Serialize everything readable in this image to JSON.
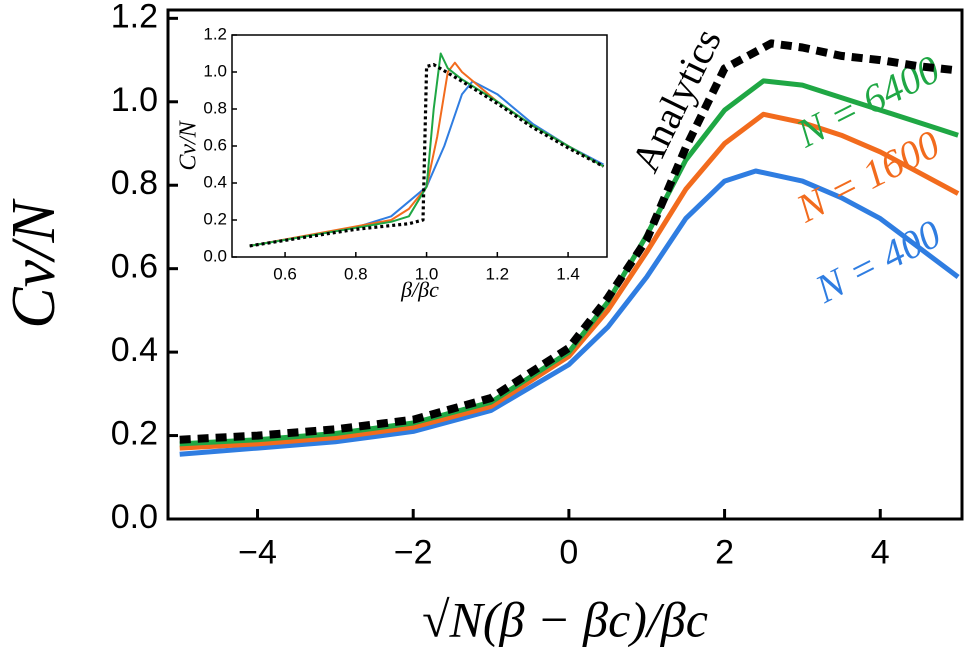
{
  "chart_data": [
    {
      "type": "line",
      "xlabel": "√N(β − βc)/βc",
      "ylabel": "Cv/N",
      "xlim": [
        -5.15,
        5.05
      ],
      "ylim": [
        0,
        1.22
      ],
      "xticks": [
        {
          "value": -4,
          "label": "−4"
        },
        {
          "value": -2,
          "label": "−2"
        },
        0,
        2,
        4
      ],
      "yticks": [
        {
          "value": 0,
          "label": "0.0"
        },
        0.2,
        0.4,
        0.6,
        0.8,
        {
          "value": 1,
          "label": "1.0"
        },
        1.2
      ],
      "series": [
        {
          "name": "N = 400",
          "color": "#2f7de1",
          "dash": false,
          "x": [
            -5,
            -4,
            -3,
            -2,
            -1,
            0,
            0.5,
            1,
            1.5,
            2,
            2.4,
            3,
            3.5,
            4,
            4.5,
            5
          ],
          "values": [
            0.155,
            0.17,
            0.185,
            0.21,
            0.26,
            0.37,
            0.46,
            0.58,
            0.72,
            0.81,
            0.834,
            0.81,
            0.77,
            0.72,
            0.65,
            0.58
          ]
        },
        {
          "name": "N = 1600",
          "color": "#f26b1d",
          "dash": false,
          "x": [
            -5,
            -4,
            -3,
            -2,
            -1,
            0,
            0.5,
            1,
            1.5,
            2,
            2.5,
            3,
            3.5,
            4,
            4.5,
            5
          ],
          "values": [
            0.17,
            0.18,
            0.195,
            0.22,
            0.27,
            0.39,
            0.5,
            0.64,
            0.79,
            0.9,
            0.97,
            0.95,
            0.92,
            0.88,
            0.83,
            0.78
          ]
        },
        {
          "name": "N = 6400",
          "color": "#1fa744",
          "dash": false,
          "x": [
            -5,
            -4,
            -3,
            -2,
            -1,
            0,
            0.5,
            1,
            1.5,
            2,
            2.5,
            3,
            3.5,
            4,
            4.5,
            5
          ],
          "values": [
            0.18,
            0.19,
            0.205,
            0.23,
            0.28,
            0.4,
            0.52,
            0.68,
            0.86,
            0.98,
            1.05,
            1.04,
            1.01,
            0.98,
            0.95,
            0.92
          ]
        },
        {
          "name": "Analytics",
          "color": "#000000",
          "dash": true,
          "x": [
            -5,
            -4,
            -3,
            -2,
            -1,
            0,
            0.5,
            1,
            1.5,
            2,
            2.6,
            3,
            3.5,
            4,
            4.5,
            5
          ],
          "values": [
            0.19,
            0.2,
            0.215,
            0.238,
            0.29,
            0.41,
            0.53,
            0.67,
            0.89,
            1.08,
            1.14,
            1.13,
            1.11,
            1.1,
            1.085,
            1.075
          ]
        }
      ]
    },
    {
      "type": "line",
      "xlabel": "β/βc",
      "ylabel": "Cv/N",
      "xlim": [
        0.45,
        1.51
      ],
      "ylim": [
        0,
        1.2
      ],
      "xticks": [
        0.6,
        0.8,
        {
          "value": 1,
          "label": "1.0"
        },
        1.2,
        1.4
      ],
      "yticks": [
        {
          "value": 0,
          "label": "0.0"
        },
        0.2,
        0.4,
        0.6,
        0.8,
        {
          "value": 1,
          "label": "1.0"
        },
        1.2
      ],
      "series": [
        {
          "color": "#2f7de1",
          "dash": false,
          "x": [
            0.5,
            0.8,
            0.9,
            1.0,
            1.05,
            1.1,
            1.13,
            1.2,
            1.3,
            1.4,
            1.5
          ],
          "values": [
            0.06,
            0.16,
            0.22,
            0.38,
            0.6,
            0.88,
            0.95,
            0.88,
            0.72,
            0.6,
            0.5
          ]
        },
        {
          "color": "#f26b1d",
          "dash": false,
          "x": [
            0.5,
            0.9,
            0.95,
            1.0,
            1.03,
            1.06,
            1.08,
            1.1,
            1.2,
            1.3,
            1.4,
            1.5
          ],
          "values": [
            0.06,
            0.2,
            0.26,
            0.38,
            0.65,
            1.0,
            1.05,
            1.0,
            0.84,
            0.71,
            0.6,
            0.49
          ]
        },
        {
          "color": "#1fa744",
          "dash": false,
          "x": [
            0.5,
            0.9,
            0.95,
            1.0,
            1.02,
            1.04,
            1.06,
            1.1,
            1.2,
            1.3,
            1.4,
            1.5
          ],
          "values": [
            0.06,
            0.19,
            0.22,
            0.38,
            0.8,
            1.1,
            1.02,
            0.96,
            0.84,
            0.71,
            0.6,
            0.49
          ]
        },
        {
          "color": "#000000",
          "dash": true,
          "x": [
            0.5,
            0.8,
            0.95,
            0.99,
            1.0,
            1.02,
            1.1,
            1.2,
            1.3,
            1.4,
            1.5
          ],
          "values": [
            0.06,
            0.15,
            0.18,
            0.2,
            1.03,
            1.04,
            0.95,
            0.83,
            0.7,
            0.59,
            0.49
          ]
        }
      ]
    }
  ]
}
